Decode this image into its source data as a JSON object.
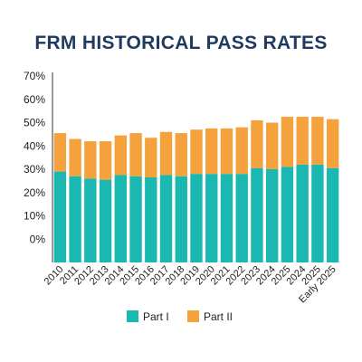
{
  "chart_data": {
    "type": "bar",
    "stacked": true,
    "title": "FRM HISTORICAL PASS RATES",
    "categories": [
      "2010",
      "2011",
      "2012",
      "2013",
      "2014",
      "2015",
      "2016",
      "2017",
      "2018",
      "2019",
      "2020",
      "2021",
      "2022",
      "2023",
      "2024",
      "2025",
      "2024",
      "2025",
      "Early 2025"
    ],
    "series": [
      {
        "name": "Part I",
        "color": "#1bb8b2",
        "values": [
          29,
          27,
          26,
          25.5,
          27.5,
          27,
          26.5,
          27.5,
          27,
          28,
          28,
          28,
          28,
          30.5,
          30,
          31,
          32,
          32,
          30.5
        ]
      },
      {
        "name": "Part II",
        "color": "#f5a23c",
        "values": [
          16.5,
          16,
          16,
          16.5,
          17,
          18.5,
          17,
          18.5,
          18.5,
          19,
          19.5,
          19.5,
          20,
          20.5,
          20,
          21.5,
          20.5,
          20.5,
          21
        ]
      }
    ],
    "ylim": [
      -10,
      70
    ],
    "yticks": [
      0,
      10,
      20,
      30,
      40,
      50,
      60,
      70
    ],
    "ytick_labels": [
      "0%",
      "10%",
      "20%",
      "30%",
      "40%",
      "50%",
      "60%",
      "70%"
    ],
    "legend_position": "bottom",
    "grid": false
  }
}
